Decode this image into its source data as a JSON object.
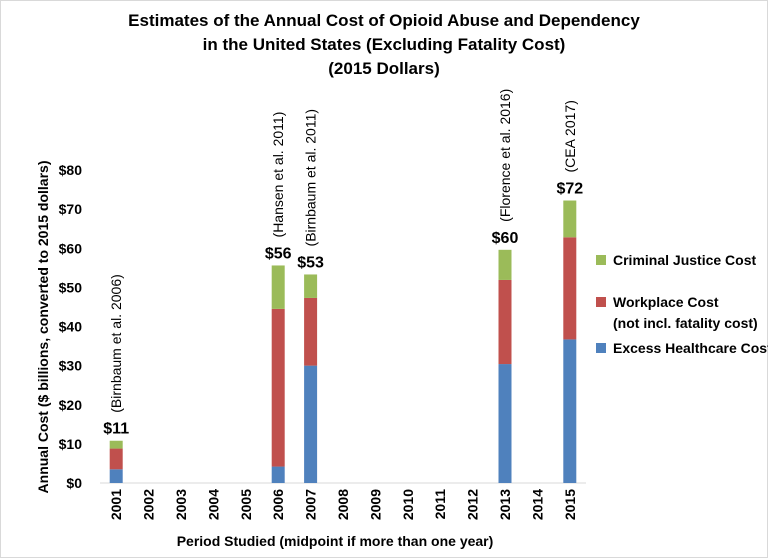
{
  "chart_data": {
    "type": "bar",
    "stacked": true,
    "title": [
      "Estimates of the Annual Cost of Opioid Abuse and Dependency",
      "in the United States (Excluding Fatality Cost)",
      "(2015 Dollars)"
    ],
    "xlabel": "Period Studied (midpoint if more than one year)",
    "ylabel": "Annual Cost ($ billions, converted to 2015 dollars)",
    "ylim": [
      0,
      80
    ],
    "yticks": [
      "$0",
      "$10",
      "$20",
      "$30",
      "$40",
      "$50",
      "$60",
      "$70",
      "$80"
    ],
    "categories": [
      "2001",
      "2002",
      "2003",
      "2004",
      "2005",
      "2006",
      "2007",
      "2008",
      "2009",
      "2010",
      "2011",
      "2012",
      "2013",
      "2014",
      "2015"
    ],
    "grid": false,
    "legend_position": "right",
    "series": [
      {
        "name": "Excess Healthcare Cost",
        "color": "#4f81bd",
        "values": [
          3.5,
          null,
          null,
          null,
          null,
          4.2,
          30,
          null,
          null,
          null,
          null,
          null,
          30.4,
          null,
          36.7
        ]
      },
      {
        "name": "Workplace Cost",
        "name_line2": "(not incl. fatality cost)",
        "color": "#c0504d",
        "values": [
          5.3,
          null,
          null,
          null,
          null,
          40.3,
          17.3,
          null,
          null,
          null,
          null,
          null,
          21.5,
          null,
          26.1
        ]
      },
      {
        "name": "Criminal Justice Cost",
        "color": "#9bbb59",
        "values": [
          2.0,
          null,
          null,
          null,
          null,
          11.1,
          6.0,
          null,
          null,
          null,
          null,
          null,
          7.7,
          null,
          9.4
        ]
      }
    ],
    "totals": [
      {
        "category": "2001",
        "label": "$11",
        "source": "(Birnbaum et al. 2006)"
      },
      {
        "category": "2006",
        "label": "$56",
        "source": "(Hansen et al. 2011)"
      },
      {
        "category": "2007",
        "label": "$53",
        "source": "(Birnbaum et al. 2011)"
      },
      {
        "category": "2013",
        "label": "$60",
        "source": "(Florence et al. 2016)"
      },
      {
        "category": "2015",
        "label": "$72",
        "source": "(CEA 2017)"
      }
    ],
    "legend_order": [
      2,
      1,
      0
    ]
  }
}
